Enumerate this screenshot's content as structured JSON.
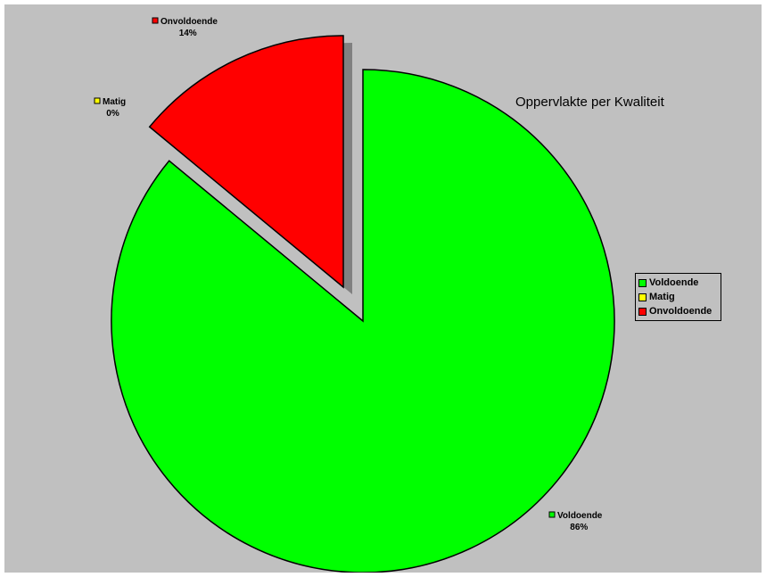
{
  "chart_data": {
    "type": "pie",
    "title": "Oppervlakte per Kwaliteit",
    "slices": [
      {
        "label": "Voldoende",
        "value": 86,
        "percent_label": "86%",
        "color": "#00ff00",
        "exploded": false
      },
      {
        "label": "Matig",
        "value": 0,
        "percent_label": "0%",
        "color": "#ffff00",
        "exploded": true
      },
      {
        "label": "Onvoldoende",
        "value": 14,
        "percent_label": "14%",
        "color": "#ff0000",
        "exploded": true
      }
    ],
    "legend": [
      "Voldoende",
      "Matig",
      "Onvoldoende"
    ],
    "legend_position": "right",
    "background_color": "#c0c0c0"
  }
}
